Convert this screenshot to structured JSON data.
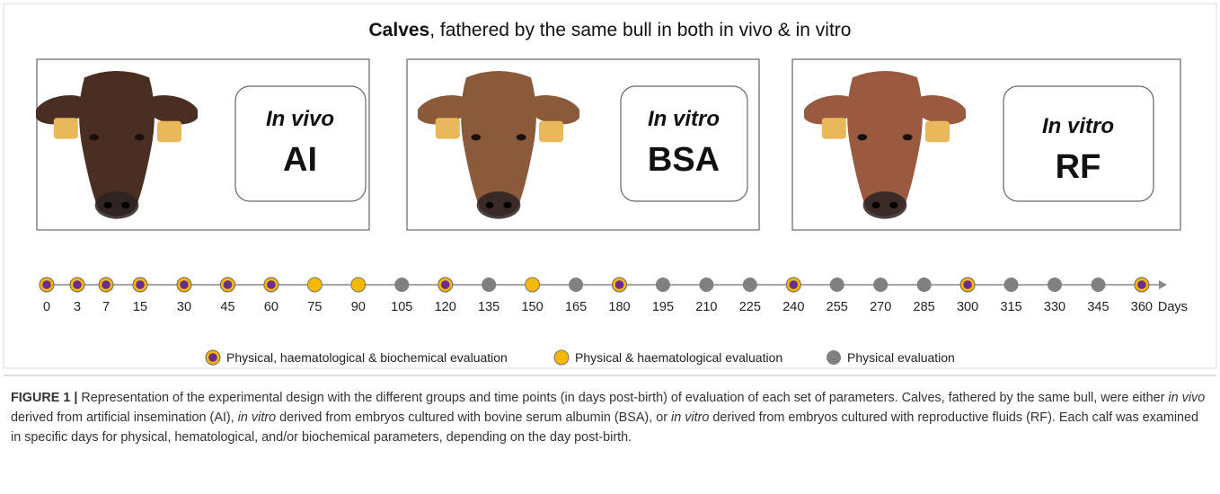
{
  "title_bold": "Calves",
  "title_rest": ", fathered by the same bull in both in vivo & in vitro",
  "groups": [
    {
      "mode": "In vivo",
      "code": "AI"
    },
    {
      "mode": "In vitro",
      "code": "BSA"
    },
    {
      "mode": "In vitro",
      "code": "RF"
    }
  ],
  "timeline": {
    "unit": "Days",
    "points": [
      {
        "day": 0,
        "type": "full"
      },
      {
        "day": 3,
        "type": "full"
      },
      {
        "day": 7,
        "type": "full"
      },
      {
        "day": 15,
        "type": "full"
      },
      {
        "day": 30,
        "type": "full"
      },
      {
        "day": 45,
        "type": "full"
      },
      {
        "day": 60,
        "type": "full"
      },
      {
        "day": 75,
        "type": "haem"
      },
      {
        "day": 90,
        "type": "haem"
      },
      {
        "day": 105,
        "type": "phys"
      },
      {
        "day": 120,
        "type": "full"
      },
      {
        "day": 135,
        "type": "phys"
      },
      {
        "day": 150,
        "type": "haem"
      },
      {
        "day": 165,
        "type": "phys"
      },
      {
        "day": 180,
        "type": "full"
      },
      {
        "day": 195,
        "type": "phys"
      },
      {
        "day": 210,
        "type": "phys"
      },
      {
        "day": 225,
        "type": "phys"
      },
      {
        "day": 240,
        "type": "full"
      },
      {
        "day": 255,
        "type": "phys"
      },
      {
        "day": 270,
        "type": "phys"
      },
      {
        "day": 285,
        "type": "phys"
      },
      {
        "day": 300,
        "type": "full"
      },
      {
        "day": 315,
        "type": "phys"
      },
      {
        "day": 330,
        "type": "phys"
      },
      {
        "day": 345,
        "type": "phys"
      },
      {
        "day": 360,
        "type": "full"
      }
    ]
  },
  "legend": [
    {
      "type": "full",
      "label": "Physical, haematological & biochemical evaluation"
    },
    {
      "type": "haem",
      "label": "Physical & haematological evaluation"
    },
    {
      "type": "phys",
      "label": "Physical evaluation"
    }
  ],
  "caption": {
    "label": "FIGURE 1 |",
    "segments": [
      {
        "text": " Representation of the experimental design with the different groups and time points (in days post-birth) of evaluation of each set of parameters. Calves, fathered by the same bull, were either ",
        "italic": false
      },
      {
        "text": "in vivo",
        "italic": true
      },
      {
        "text": " derived from artificial insemination (AI), ",
        "italic": false
      },
      {
        "text": "in vitro",
        "italic": true
      },
      {
        "text": " derived from embryos cultured with bovine serum albumin (BSA), or ",
        "italic": false
      },
      {
        "text": "in vitro",
        "italic": true
      },
      {
        "text": " derived from embryos cultured with reproductive fluids (RF). Each calf was examined in specific days for physical, hematological, and/or biochemical parameters, depending on the day post-birth.",
        "italic": false
      }
    ]
  }
}
